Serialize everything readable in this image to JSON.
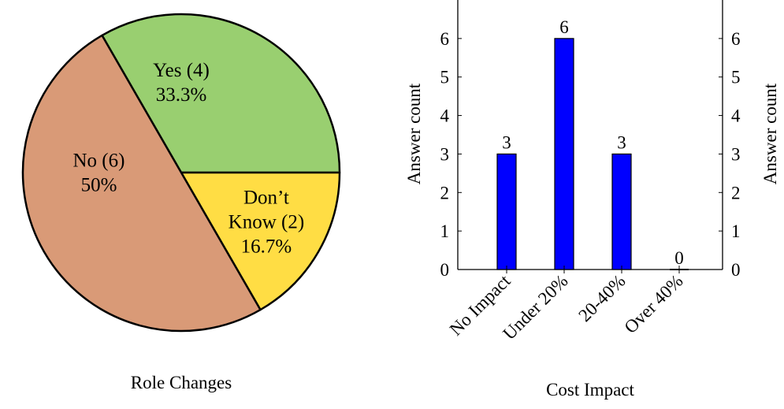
{
  "chart_data": [
    {
      "type": "pie",
      "title": "Role Changes",
      "slices": [
        {
          "label": "Yes (4)",
          "percent_label": "33.3%",
          "value": 4,
          "color": "#99cf70"
        },
        {
          "label": "Don’t Know (2)",
          "label_lines": [
            "Don’t",
            "Know (2)"
          ],
          "percent_label": "16.7%",
          "value": 2,
          "color": "#ffdd44"
        },
        {
          "label": "No (6)",
          "percent_label": "50%",
          "value": 6,
          "color": "#d99a77"
        }
      ]
    },
    {
      "type": "bar",
      "title": "Cost Impact",
      "categories": [
        "No Impact",
        "Under 20%",
        "20-40%",
        "Over 40%"
      ],
      "values": [
        3,
        6,
        3,
        0
      ],
      "ylabel": "Answer count",
      "ylabel_right": "Answer count",
      "ylim": [
        0,
        7
      ],
      "yticks": [
        0,
        1,
        2,
        3,
        4,
        5,
        6
      ],
      "bar_color": "#0000ff",
      "grid": false
    }
  ]
}
